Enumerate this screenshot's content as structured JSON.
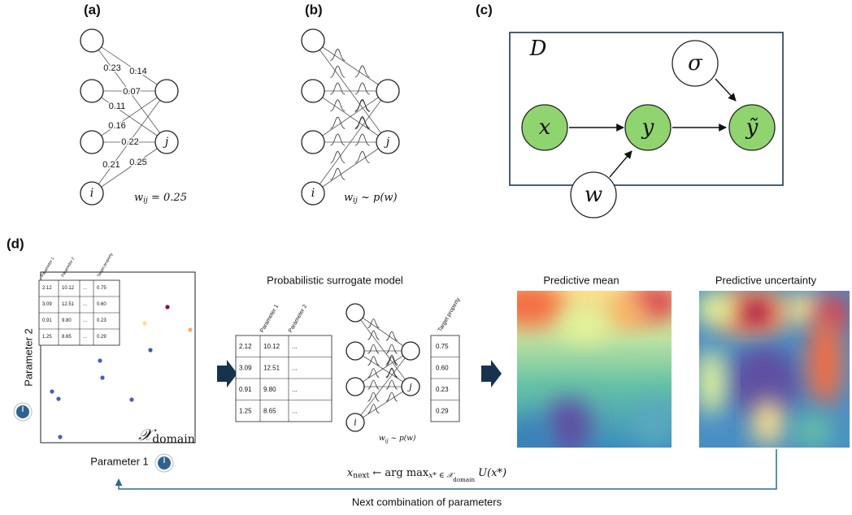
{
  "panels": {
    "a": "(a)",
    "b": "(b)",
    "c": "(c)",
    "d": "(d)"
  },
  "panel_a": {
    "weights": [
      "0.23",
      "0.14",
      "0.07",
      "0.11",
      "0.16",
      "0.22",
      "0.21",
      "0.25"
    ],
    "node_j": "j",
    "node_i": "i",
    "formula": {
      "w": "w",
      "sub": "ij",
      "rest": " = 0.25"
    }
  },
  "panel_b": {
    "node_j": "j",
    "node_i": "i",
    "formula": {
      "w": "w",
      "sub": "ij",
      "rest": " ~ p(w)"
    }
  },
  "panel_c": {
    "plate": "D",
    "sigma": "σ",
    "x": "x",
    "y": "y",
    "y_tilde": "ỹ",
    "w": "w"
  },
  "panel_d": {
    "table": {
      "headers": [
        "Parameter 1",
        "Parameter 2",
        "Target property"
      ],
      "rows": [
        [
          "2.12",
          "10.12",
          "...",
          "0.75"
        ],
        [
          "3.09",
          "12.51",
          "...",
          "0.60"
        ],
        [
          "0.91",
          "9.80",
          "...",
          "0.23"
        ],
        [
          "1.25",
          "8.65",
          "...",
          "0.29"
        ]
      ]
    },
    "y_axis": "Parameter 2",
    "x_axis": "Parameter 1",
    "domain": {
      "symbol": "𝒳",
      "sub": "domain"
    },
    "surrogate_title": "Probabilistic surrogate model",
    "mean_title": "Predictive mean",
    "uncertainty_title": "Predictive uncertainty",
    "acquisition": [
      "x",
      "next",
      " ← arg max",
      "x* ∈ 𝒳",
      "domain",
      " U(x*)"
    ],
    "feedback": "Next combination of parameters"
  }
}
